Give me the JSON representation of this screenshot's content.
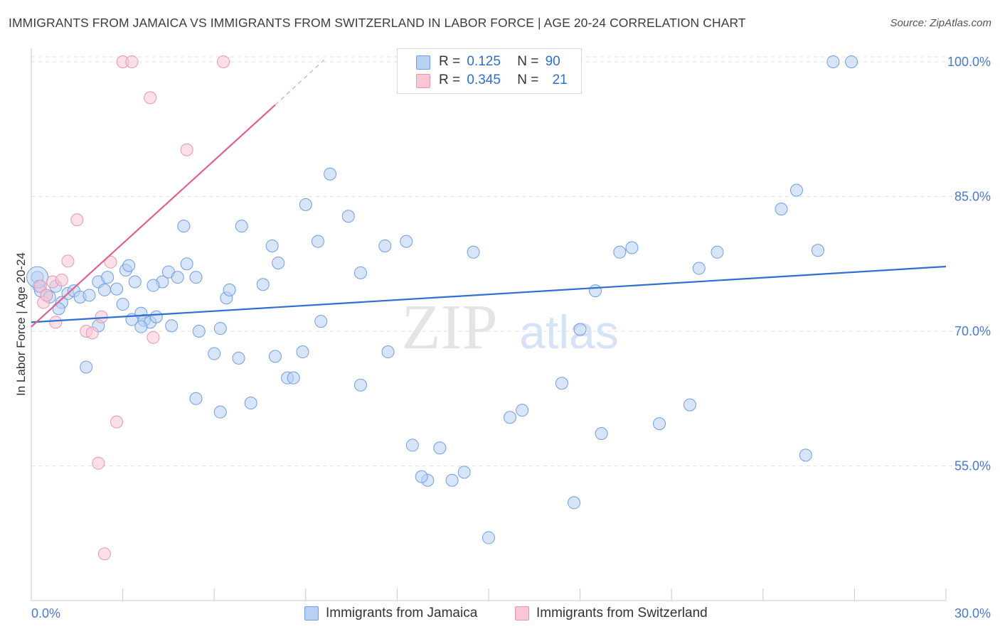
{
  "chart_data": {
    "type": "scatter",
    "title": "IMMIGRANTS FROM JAMAICA VS IMMIGRANTS FROM SWITZERLAND IN LABOR FORCE | AGE 20-24 CORRELATION CHART",
    "source": "Source: ZipAtlas.com",
    "xlabel": "",
    "ylabel": "In Labor Force | Age 20-24",
    "xlim": [
      0,
      30
    ],
    "ylim": [
      40,
      101.5
    ],
    "x_tick_labels": {
      "min": "0.0%",
      "max": "30.0%"
    },
    "y_ticks": [
      {
        "value": 55,
        "label": "55.0%"
      },
      {
        "value": 70,
        "label": "70.0%"
      },
      {
        "value": 85,
        "label": "85.0%"
      },
      {
        "value": 100,
        "label": "100.0%"
      }
    ],
    "watermark": {
      "zip": "ZIP",
      "atlas": "atlas"
    },
    "legend": {
      "entries": [
        {
          "r_label": "R =",
          "r_value": "0.125",
          "n_label": "N =",
          "n_value": "90"
        },
        {
          "r_label": "R =",
          "r_value": "0.345",
          "n_label": "N =",
          "n_value": "21"
        }
      ]
    },
    "series": [
      {
        "name": "Immigrants from Jamaica",
        "color": "#6d9ee6",
        "fill": "#b8d0f4",
        "trend": {
          "x0": 0,
          "y0": 71.0,
          "x1": 30,
          "y1": 77.2
        },
        "points": [
          [
            0.2,
            76
          ],
          [
            0.25,
            75
          ],
          [
            0.3,
            74.5
          ],
          [
            0.5,
            74
          ],
          [
            0.6,
            73.8
          ],
          [
            0.8,
            75
          ],
          [
            1.0,
            73.2
          ],
          [
            1.2,
            74.2
          ],
          [
            0.9,
            72.5
          ],
          [
            1.4,
            74.5
          ],
          [
            1.6,
            73.8
          ],
          [
            1.9,
            74
          ],
          [
            2.2,
            75.5
          ],
          [
            2.5,
            76
          ],
          [
            2.4,
            74.6
          ],
          [
            2.8,
            74.7
          ],
          [
            3.1,
            76.8
          ],
          [
            3.2,
            77.3
          ],
          [
            3.4,
            75.5
          ],
          [
            3.0,
            73
          ],
          [
            3.6,
            72
          ],
          [
            3.7,
            71.2
          ],
          [
            3.9,
            71
          ],
          [
            4.1,
            71.6
          ],
          [
            4.3,
            75.5
          ],
          [
            4.5,
            76.6
          ],
          [
            4.6,
            70.6
          ],
          [
            4.8,
            76
          ],
          [
            5.0,
            81.7
          ],
          [
            5.1,
            77.5
          ],
          [
            5.4,
            76
          ],
          [
            5.5,
            70
          ],
          [
            6.0,
            67.5
          ],
          [
            6.2,
            70.3
          ],
          [
            6.4,
            73.7
          ],
          [
            6.5,
            74.6
          ],
          [
            6.9,
            81.7
          ],
          [
            6.8,
            67
          ],
          [
            7.2,
            62
          ],
          [
            7.6,
            75.2
          ],
          [
            7.9,
            79.5
          ],
          [
            8.1,
            77.6
          ],
          [
            8.0,
            67.2
          ],
          [
            8.4,
            64.8
          ],
          [
            8.6,
            64.8
          ],
          [
            8.9,
            67.7
          ],
          [
            9.0,
            84.1
          ],
          [
            9.4,
            80
          ],
          [
            9.5,
            71.1
          ],
          [
            9.8,
            87.5
          ],
          [
            10.4,
            82.8
          ],
          [
            10.8,
            76.5
          ],
          [
            11.6,
            79.5
          ],
          [
            11.7,
            67.7
          ],
          [
            12.3,
            80
          ],
          [
            12.5,
            57.3
          ],
          [
            13.0,
            53.4
          ],
          [
            13.4,
            57
          ],
          [
            13.8,
            53.4
          ],
          [
            14.2,
            54.3
          ],
          [
            14.5,
            78.8
          ],
          [
            15.0,
            47
          ],
          [
            15.7,
            60.4
          ],
          [
            16.1,
            61.2
          ],
          [
            17.4,
            64.2
          ],
          [
            17.8,
            50.9
          ],
          [
            18.0,
            70.2
          ],
          [
            18.5,
            74.5
          ],
          [
            18.7,
            58.6
          ],
          [
            19.3,
            78.8
          ],
          [
            19.7,
            79.3
          ],
          [
            20.6,
            59.7
          ],
          [
            21.6,
            61.8
          ],
          [
            21.9,
            77
          ],
          [
            22.5,
            78.8
          ],
          [
            24.6,
            83.6
          ],
          [
            25.1,
            85.7
          ],
          [
            25.4,
            56.2
          ],
          [
            25.8,
            79
          ],
          [
            26.3,
            100
          ],
          [
            26.9,
            100
          ],
          [
            2.2,
            70.6
          ],
          [
            3.6,
            70.5
          ],
          [
            3.3,
            71.3
          ],
          [
            10.8,
            64
          ],
          [
            12.8,
            53.8
          ],
          [
            6.2,
            61
          ],
          [
            5.4,
            62.5
          ],
          [
            1.8,
            66
          ],
          [
            4.0,
            75.1
          ]
        ]
      },
      {
        "name": "Immigrants from Switzerland",
        "color": "#e896b0",
        "fill": "#f8c6d5",
        "trend": {
          "x0": 0,
          "y0": 70.5,
          "x1": 8.0,
          "y1": 95.2
        },
        "trend_dashed": {
          "x0": 8.0,
          "y0": 95.2,
          "x1": 9.6,
          "y1": 100.2
        },
        "points": [
          [
            0.3,
            75
          ],
          [
            0.4,
            73.2
          ],
          [
            0.5,
            74
          ],
          [
            0.7,
            75.5
          ],
          [
            0.8,
            71
          ],
          [
            1.0,
            75.7
          ],
          [
            1.2,
            77.8
          ],
          [
            1.5,
            82.4
          ],
          [
            1.8,
            70
          ],
          [
            2.0,
            69.8
          ],
          [
            2.3,
            71.6
          ],
          [
            2.6,
            77.7
          ],
          [
            2.8,
            59.9
          ],
          [
            3.0,
            100
          ],
          [
            3.3,
            100
          ],
          [
            3.9,
            96
          ],
          [
            4.0,
            69.3
          ],
          [
            5.1,
            90.2
          ],
          [
            6.3,
            100
          ],
          [
            2.2,
            55.3
          ],
          [
            2.4,
            45.2
          ]
        ]
      }
    ]
  }
}
